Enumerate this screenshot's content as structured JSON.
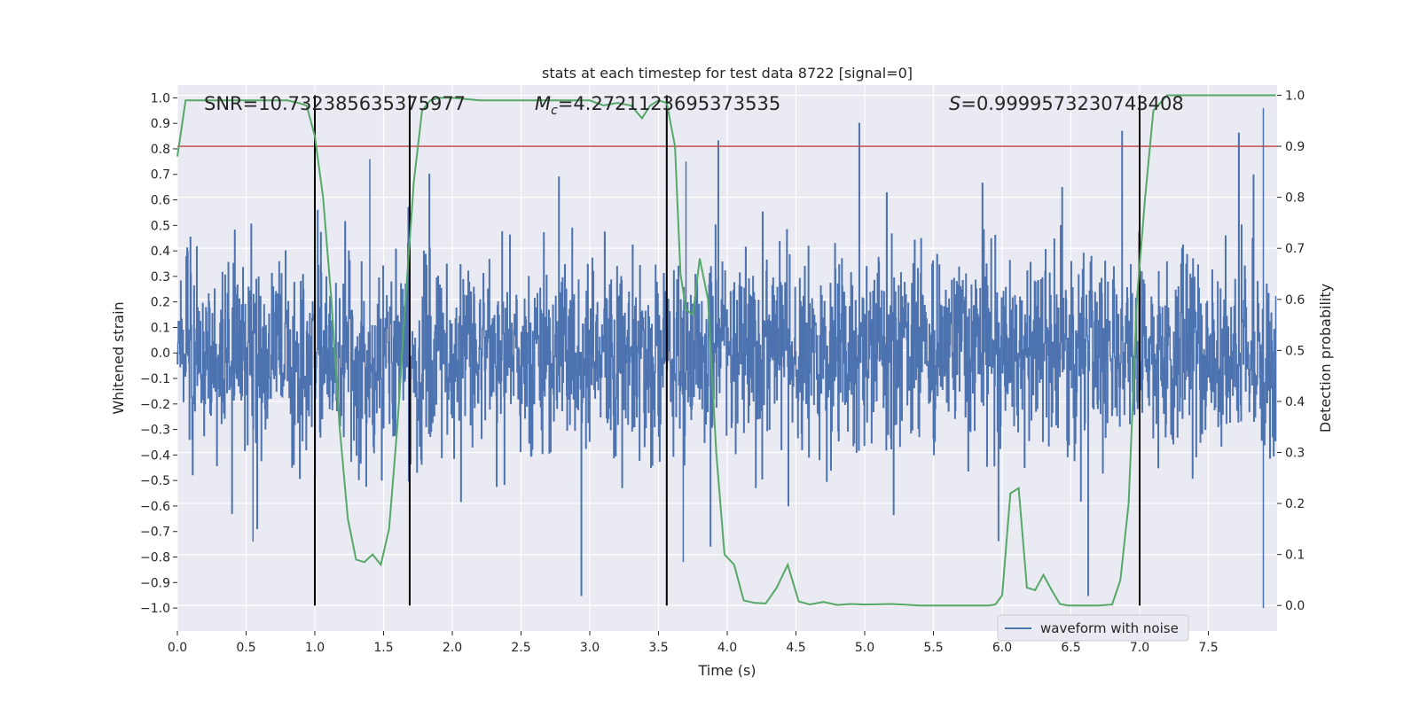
{
  "chart_data": {
    "type": "line",
    "title": "stats at each timestep for test data 8722 [signal=0]",
    "xlabel": "Time (s)",
    "ylabel_left": "Whitened strain",
    "ylabel_right": "Detection probability",
    "xlim": [
      0.0,
      8.0
    ],
    "ylim_left": [
      -1.09,
      1.05
    ],
    "ylim_right": [
      -0.05,
      1.02
    ],
    "x_ticks": [
      "0.0",
      "0.5",
      "1.0",
      "1.5",
      "2.0",
      "2.5",
      "3.0",
      "3.5",
      "4.0",
      "4.5",
      "5.0",
      "5.5",
      "6.0",
      "6.5",
      "7.0",
      "7.5"
    ],
    "y_ticks_left": [
      "1.0",
      "0.9",
      "0.8",
      "0.7",
      "0.6",
      "0.5",
      "0.4",
      "0.3",
      "0.2",
      "0.1",
      "0.0",
      "−0.1",
      "−0.2",
      "−0.3",
      "−0.4",
      "−0.5",
      "−0.6",
      "−0.7",
      "−0.8",
      "−0.9",
      "−1.0"
    ],
    "y_ticks_right": [
      "1.0",
      "0.9",
      "0.8",
      "0.7",
      "0.6",
      "0.5",
      "0.4",
      "0.3",
      "0.2",
      "0.1",
      "0.0"
    ],
    "annotations": {
      "snr": "SNR=10.732385635375977",
      "mc_symbol": "M",
      "mc_sub": "c",
      "mc_value": "=4.2721123695373535",
      "s_symbol": "S",
      "s_value": "=0.9999573230743408"
    },
    "legend": {
      "label": "waveform with noise",
      "location": "lower-right"
    },
    "threshold": {
      "axis": "right",
      "value": 0.9,
      "color": "#c44e52"
    },
    "vertical_lines": [
      1.0,
      1.69,
      3.56,
      7.0
    ],
    "waveform_series": {
      "name": "waveform with noise",
      "color": "#4c72b0",
      "x_range": [
        0.0,
        7.99
      ],
      "samples": 2400,
      "seed": 8722,
      "spikes": [
        {
          "x": 7.9,
          "y": 0.96
        },
        {
          "x": 7.9,
          "y": -1.0
        },
        {
          "x": 3.7,
          "y": 0.75
        },
        {
          "x": 1.4,
          "y": 0.76
        },
        {
          "x": 3.68,
          "y": -0.82
        },
        {
          "x": 0.55,
          "y": -0.74
        }
      ]
    },
    "probability_series": {
      "name": "detection probability",
      "color": "#55a868",
      "x": [
        0.0,
        0.06,
        0.12,
        0.2,
        0.3,
        0.4,
        0.5,
        0.6,
        0.7,
        0.8,
        0.88,
        0.94,
        1.0,
        1.06,
        1.12,
        1.18,
        1.24,
        1.3,
        1.36,
        1.42,
        1.48,
        1.54,
        1.6,
        1.66,
        1.72,
        1.78,
        1.84,
        1.9,
        2.0,
        2.2,
        2.4,
        2.5,
        2.6,
        2.8,
        3.0,
        3.1,
        3.2,
        3.3,
        3.38,
        3.44,
        3.5,
        3.56,
        3.62,
        3.66,
        3.7,
        3.75,
        3.8,
        3.86,
        3.92,
        3.98,
        4.05,
        4.12,
        4.2,
        4.28,
        4.36,
        4.44,
        4.52,
        4.6,
        4.7,
        4.8,
        4.9,
        5.0,
        5.2,
        5.4,
        5.6,
        5.8,
        5.9,
        5.95,
        6.0,
        6.06,
        6.12,
        6.18,
        6.24,
        6.3,
        6.36,
        6.42,
        6.48,
        6.56,
        6.7,
        6.8,
        6.86,
        6.92,
        6.98,
        7.04,
        7.1,
        7.2,
        7.3,
        7.6,
        7.8,
        7.99
      ],
      "y": [
        0.88,
        0.99,
        0.99,
        0.99,
        0.99,
        0.99,
        0.99,
        0.99,
        0.99,
        0.99,
        0.985,
        0.98,
        0.92,
        0.8,
        0.6,
        0.35,
        0.17,
        0.09,
        0.085,
        0.1,
        0.08,
        0.15,
        0.35,
        0.6,
        0.83,
        0.97,
        0.99,
        0.995,
        0.995,
        0.99,
        0.99,
        0.99,
        0.99,
        0.99,
        0.99,
        0.98,
        0.985,
        0.98,
        0.955,
        0.98,
        0.99,
        0.985,
        0.9,
        0.65,
        0.58,
        0.57,
        0.68,
        0.6,
        0.3,
        0.1,
        0.08,
        0.01,
        0.005,
        0.004,
        0.035,
        0.08,
        0.008,
        0.002,
        0.007,
        0.001,
        0.003,
        0.002,
        0.003,
        0.0,
        0.0,
        0.0,
        0.0,
        0.002,
        0.02,
        0.22,
        0.23,
        0.035,
        0.03,
        0.06,
        0.03,
        0.003,
        0.0,
        0.0,
        0.0,
        0.002,
        0.05,
        0.2,
        0.6,
        0.8,
        0.97,
        1.0,
        1.0,
        1.0,
        1.0,
        1.0
      ]
    }
  }
}
